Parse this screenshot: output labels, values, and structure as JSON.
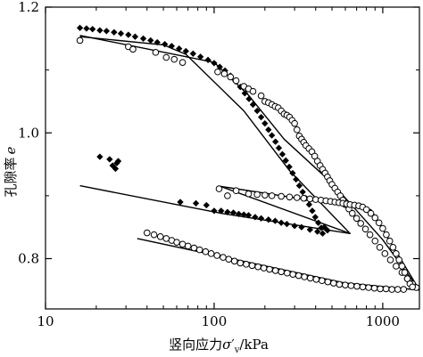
{
  "chart_data": {
    "type": "scatter",
    "xscale": "log",
    "xlim": [
      10,
      1650
    ],
    "ylim": [
      0.72,
      1.2
    ],
    "xticks": [
      {
        "value": 10,
        "label": "10"
      },
      {
        "value": 100,
        "label": "100"
      },
      {
        "value": 1000,
        "label": "1000"
      }
    ],
    "yticks": [
      {
        "value": 0.8,
        "label": "0.8"
      },
      {
        "value": 1.0,
        "label": "1.0"
      },
      {
        "value": 1.2,
        "label": "1.2"
      }
    ],
    "xlabel_parts": [
      "竖向应力",
      "σ",
      "′",
      "v",
      "/kPa"
    ],
    "ylabel_parts": [
      "孔隙率",
      "e"
    ],
    "grid": false,
    "legend": "none",
    "series": [
      {
        "marker": "diamond-filled",
        "points": [
          [
            16,
            1.167
          ],
          [
            17.5,
            1.166
          ],
          [
            19,
            1.165
          ],
          [
            21,
            1.163
          ],
          [
            23,
            1.162
          ],
          [
            25.5,
            1.16
          ],
          [
            28,
            1.158
          ],
          [
            31,
            1.156
          ],
          [
            34,
            1.153
          ],
          [
            38,
            1.15
          ],
          [
            42,
            1.147
          ],
          [
            46,
            1.144
          ],
          [
            51,
            1.141
          ],
          [
            56,
            1.138
          ],
          [
            62,
            1.134
          ],
          [
            68,
            1.13
          ],
          [
            75,
            1.126
          ],
          [
            83,
            1.121
          ],
          [
            92,
            1.116
          ],
          [
            100,
            1.111
          ],
          [
            108,
            1.105
          ],
          [
            116,
            1.099
          ],
          [
            125,
            1.091
          ],
          [
            134,
            1.082
          ],
          [
            143,
            1.073
          ],
          [
            152,
            1.063
          ],
          [
            161,
            1.054
          ],
          [
            170,
            1.045
          ],
          [
            180,
            1.035
          ],
          [
            190,
            1.025
          ],
          [
            200,
            1.015
          ],
          [
            210,
            1.005
          ],
          [
            220,
            0.996
          ],
          [
            231,
            0.986
          ],
          [
            242,
            0.976
          ],
          [
            254,
            0.966
          ],
          [
            266,
            0.956
          ],
          [
            279,
            0.946
          ],
          [
            292,
            0.936
          ],
          [
            306,
            0.926
          ],
          [
            320,
            0.916
          ],
          [
            335,
            0.906
          ],
          [
            350,
            0.896
          ],
          [
            366,
            0.886
          ],
          [
            382,
            0.876
          ],
          [
            398,
            0.866
          ],
          [
            415,
            0.857
          ],
          [
            432,
            0.849
          ],
          [
            450,
            0.85
          ],
          [
            470,
            0.845
          ],
          [
            21,
            0.962
          ],
          [
            24,
            0.958
          ],
          [
            25,
            0.948
          ],
          [
            26,
            0.943
          ],
          [
            26.5,
            0.952
          ],
          [
            27,
            0.955
          ],
          [
            63,
            0.89
          ],
          [
            78,
            0.888
          ],
          [
            90,
            0.885
          ],
          [
            100,
            0.876
          ],
          [
            110,
            0.876
          ],
          [
            120,
            0.874
          ],
          [
            130,
            0.873
          ],
          [
            140,
            0.871
          ],
          [
            150,
            0.87
          ],
          [
            160,
            0.869
          ],
          [
            175,
            0.866
          ],
          [
            190,
            0.864
          ],
          [
            210,
            0.862
          ],
          [
            230,
            0.86
          ],
          [
            250,
            0.857
          ],
          [
            270,
            0.855
          ],
          [
            300,
            0.852
          ],
          [
            330,
            0.85
          ],
          [
            370,
            0.846
          ],
          [
            410,
            0.843
          ],
          [
            440,
            0.84
          ]
        ]
      },
      {
        "marker": "circle-open",
        "points": [
          [
            16,
            1.147
          ],
          [
            31,
            1.137
          ],
          [
            33,
            1.133
          ],
          [
            45,
            1.128
          ],
          [
            52,
            1.12
          ],
          [
            58,
            1.117
          ],
          [
            65,
            1.112
          ],
          [
            105,
            1.097
          ],
          [
            115,
            1.094
          ],
          [
            125,
            1.089
          ],
          [
            135,
            1.083
          ],
          [
            150,
            1.074
          ],
          [
            160,
            1.07
          ],
          [
            170,
            1.066
          ],
          [
            190,
            1.059
          ],
          [
            200,
            1.05
          ],
          [
            210,
            1.048
          ],
          [
            220,
            1.045
          ],
          [
            230,
            1.042
          ],
          [
            240,
            1.04
          ],
          [
            250,
            1.035
          ],
          [
            260,
            1.03
          ],
          [
            270,
            1.028
          ],
          [
            280,
            1.025
          ],
          [
            290,
            1.02
          ],
          [
            300,
            1.015
          ],
          [
            310,
            1.005
          ],
          [
            320,
            0.995
          ],
          [
            330,
            0.99
          ],
          [
            340,
            0.985
          ],
          [
            350,
            0.98
          ],
          [
            365,
            0.975
          ],
          [
            380,
            0.97
          ],
          [
            395,
            0.963
          ],
          [
            410,
            0.955
          ],
          [
            425,
            0.948
          ],
          [
            440,
            0.942
          ],
          [
            455,
            0.936
          ],
          [
            470,
            0.93
          ],
          [
            485,
            0.924
          ],
          [
            500,
            0.918
          ],
          [
            520,
            0.912
          ],
          [
            540,
            0.906
          ],
          [
            560,
            0.9
          ],
          [
            580,
            0.893
          ],
          [
            600,
            0.886
          ],
          [
            630,
            0.879
          ],
          [
            660,
            0.872
          ],
          [
            700,
            0.864
          ],
          [
            740,
            0.856
          ],
          [
            790,
            0.847
          ],
          [
            840,
            0.838
          ],
          [
            900,
            0.828
          ],
          [
            960,
            0.818
          ],
          [
            1030,
            0.808
          ],
          [
            1110,
            0.798
          ],
          [
            1200,
            0.788
          ],
          [
            1300,
            0.778
          ],
          [
            1400,
            0.768
          ],
          [
            1500,
            0.76
          ],
          [
            1580,
            0.754
          ],
          [
            107,
            0.911
          ],
          [
            120,
            0.9
          ],
          [
            135,
            0.908
          ],
          [
            160,
            0.903
          ],
          [
            180,
            0.902
          ],
          [
            200,
            0.901
          ],
          [
            220,
            0.9
          ],
          [
            250,
            0.899
          ],
          [
            280,
            0.898
          ],
          [
            310,
            0.897
          ],
          [
            340,
            0.896
          ],
          [
            370,
            0.895
          ],
          [
            400,
            0.894
          ],
          [
            430,
            0.893
          ],
          [
            460,
            0.892
          ],
          [
            490,
            0.891
          ],
          [
            520,
            0.89
          ],
          [
            550,
            0.889
          ],
          [
            580,
            0.888
          ],
          [
            610,
            0.887
          ],
          [
            640,
            0.886
          ],
          [
            680,
            0.885
          ],
          [
            720,
            0.884
          ],
          [
            760,
            0.882
          ],
          [
            800,
            0.878
          ],
          [
            850,
            0.872
          ],
          [
            900,
            0.865
          ],
          [
            950,
            0.857
          ],
          [
            1000,
            0.848
          ],
          [
            1050,
            0.838
          ],
          [
            1100,
            0.828
          ],
          [
            1150,
            0.818
          ],
          [
            1200,
            0.808
          ],
          [
            1250,
            0.798
          ],
          [
            1300,
            0.788
          ],
          [
            1350,
            0.778
          ],
          [
            1400,
            0.768
          ],
          [
            1450,
            0.76
          ],
          [
            1500,
            0.755
          ],
          [
            40,
            0.841
          ],
          [
            44,
            0.838
          ],
          [
            48,
            0.835
          ],
          [
            52,
            0.832
          ],
          [
            56,
            0.829
          ],
          [
            60,
            0.826
          ],
          [
            65,
            0.823
          ],
          [
            70,
            0.82
          ],
          [
            76,
            0.817
          ],
          [
            82,
            0.814
          ],
          [
            89,
            0.811
          ],
          [
            96,
            0.808
          ],
          [
            104,
            0.805
          ],
          [
            113,
            0.802
          ],
          [
            122,
            0.799
          ],
          [
            132,
            0.796
          ],
          [
            143,
            0.793
          ],
          [
            155,
            0.791
          ],
          [
            168,
            0.789
          ],
          [
            182,
            0.787
          ],
          [
            197,
            0.785
          ],
          [
            213,
            0.783
          ],
          [
            231,
            0.781
          ],
          [
            250,
            0.779
          ],
          [
            271,
            0.777
          ],
          [
            293,
            0.775
          ],
          [
            317,
            0.773
          ],
          [
            343,
            0.771
          ],
          [
            372,
            0.769
          ],
          [
            403,
            0.767
          ],
          [
            436,
            0.765
          ],
          [
            472,
            0.763
          ],
          [
            511,
            0.761
          ],
          [
            553,
            0.759
          ],
          [
            599,
            0.758
          ],
          [
            649,
            0.757
          ],
          [
            703,
            0.756
          ],
          [
            761,
            0.755
          ],
          [
            824,
            0.754
          ],
          [
            892,
            0.753
          ],
          [
            966,
            0.752
          ],
          [
            1046,
            0.752
          ],
          [
            1133,
            0.751
          ],
          [
            1227,
            0.751
          ],
          [
            1329,
            0.751
          ]
        ]
      }
    ],
    "lines": [
      {
        "points": [
          [
            16,
            1.153
          ],
          [
            50,
            1.14
          ],
          [
            68,
            1.125
          ],
          [
            150,
            1.035
          ],
          [
            280,
            0.94
          ],
          [
            640,
            0.84
          ],
          [
            109,
            0.915
          ],
          [
            850,
            0.878
          ],
          [
            1650,
            0.75
          ]
        ]
      },
      {
        "points": [
          [
            16,
            1.155
          ],
          [
            100,
            1.112
          ],
          [
            160,
            1.06
          ],
          [
            260,
            0.99
          ],
          [
            500,
            0.92
          ],
          [
            1000,
            0.83
          ],
          [
            1650,
            0.75
          ]
        ]
      },
      {
        "points": [
          [
            16,
            0.916
          ],
          [
            110,
            0.872
          ],
          [
            640,
            0.84
          ]
        ]
      },
      {
        "points": [
          [
            35,
            0.832
          ],
          [
            600,
            0.761
          ],
          [
            1650,
            0.75
          ]
        ]
      }
    ]
  }
}
